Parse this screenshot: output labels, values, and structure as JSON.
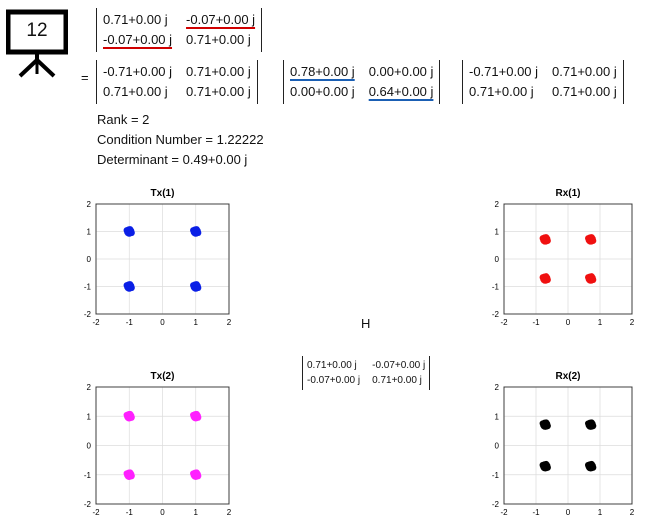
{
  "badge": {
    "number": "12"
  },
  "matrix_h": [
    [
      "0.71+0.00 j",
      "-0.07+0.00 j"
    ],
    [
      "-0.07+0.00 j",
      "0.71+0.00 j"
    ]
  ],
  "equals_sign": "=",
  "svd_u": [
    [
      "-0.71+0.00 j",
      "0.71+0.00 j"
    ],
    [
      "0.71+0.00 j",
      "0.71+0.00 j"
    ]
  ],
  "svd_s": [
    [
      "0.78+0.00 j",
      "0.00+0.00 j"
    ],
    [
      "0.00+0.00 j",
      "0.64+0.00 j"
    ]
  ],
  "svd_v": [
    [
      "-0.71+0.00 j",
      "0.71+0.00 j"
    ],
    [
      "0.71+0.00 j",
      "0.71+0.00 j"
    ]
  ],
  "stats": {
    "rank": "Rank = 2",
    "condition": "Condition Number = 1.22222",
    "determinant": "Determinant = 0.49+0.00 j"
  },
  "center_label": "H",
  "center_matrix": [
    [
      "0.71+0.00 j",
      "-0.07+0.00 j"
    ],
    [
      "-0.07+0.00 j",
      "0.71+0.00 j"
    ]
  ],
  "colors": {
    "tx1": "#0a1fe6",
    "rx1": "#f01010",
    "tx2": "#ff20ff",
    "rx2": "#000000",
    "red_underline": "#d00000",
    "blue_underline": "#1a5fb4"
  },
  "chart_data": [
    {
      "type": "scatter",
      "title": "Tx(1)",
      "color": "#0a1fe6",
      "xlim": [
        -2,
        2
      ],
      "ylim": [
        -2,
        2
      ],
      "grid": true,
      "xticks": [
        "-2",
        "-1",
        "0",
        "1",
        "2"
      ],
      "yticks": [
        "2",
        "1",
        "0",
        "-1",
        "-2"
      ],
      "points": [
        [
          -1,
          1
        ],
        [
          1,
          1
        ],
        [
          -1,
          -1
        ],
        [
          1,
          -1
        ]
      ]
    },
    {
      "type": "scatter",
      "title": "Rx(1)",
      "color": "#f01010",
      "xlim": [
        -2,
        2
      ],
      "ylim": [
        -2,
        2
      ],
      "grid": true,
      "xticks": [
        "-2",
        "-1",
        "0",
        "1",
        "2"
      ],
      "yticks": [
        "2",
        "1",
        "0",
        "-1",
        "-2"
      ],
      "points": [
        [
          -0.71,
          0.71
        ],
        [
          0.71,
          0.71
        ],
        [
          -0.71,
          -0.71
        ],
        [
          0.71,
          -0.71
        ]
      ]
    },
    {
      "type": "scatter",
      "title": "Tx(2)",
      "color": "#ff20ff",
      "xlim": [
        -2,
        2
      ],
      "ylim": [
        -2,
        2
      ],
      "grid": true,
      "xticks": [
        "-2",
        "-1",
        "0",
        "1",
        "2"
      ],
      "yticks": [
        "2",
        "1",
        "0",
        "-1",
        "-2"
      ],
      "points": [
        [
          -1,
          1
        ],
        [
          1,
          1
        ],
        [
          -1,
          -1
        ],
        [
          1,
          -1
        ]
      ]
    },
    {
      "type": "scatter",
      "title": "Rx(2)",
      "color": "#000000",
      "xlim": [
        -2,
        2
      ],
      "ylim": [
        -2,
        2
      ],
      "grid": true,
      "xticks": [
        "-2",
        "-1",
        "0",
        "1",
        "2"
      ],
      "yticks": [
        "2",
        "1",
        "0",
        "-1",
        "-2"
      ],
      "points": [
        [
          -0.71,
          0.71
        ],
        [
          0.71,
          0.71
        ],
        [
          -0.71,
          -0.71
        ],
        [
          0.71,
          -0.71
        ]
      ]
    }
  ]
}
